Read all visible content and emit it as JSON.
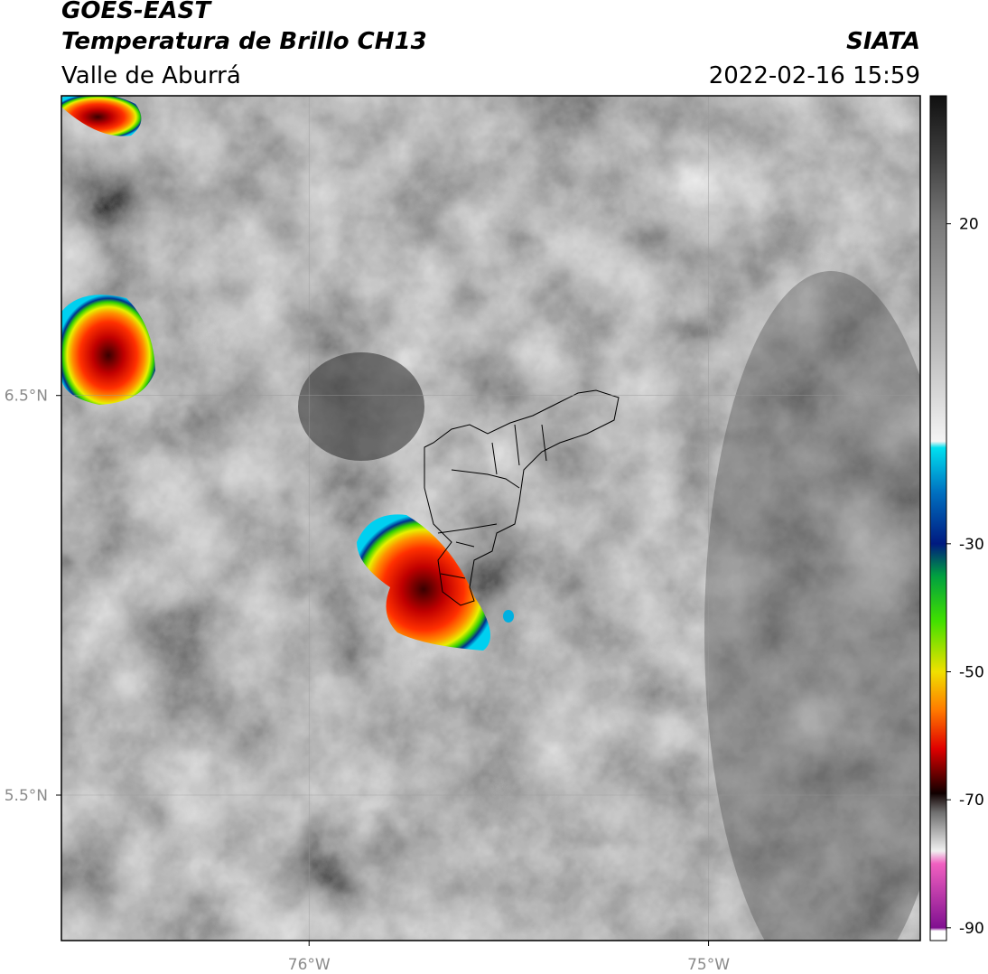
{
  "header": {
    "source": "GOES-EAST",
    "product": "Temperatura de Brillo CH13",
    "agency": "SIATA",
    "region": "Valle de Aburrá",
    "datetime": "2022-02-16 15:59"
  },
  "map": {
    "xlim": [
      -76.62,
      -74.47
    ],
    "ylim": [
      5.136,
      7.25
    ],
    "xticks": [
      {
        "value": -76,
        "label": "76°W"
      },
      {
        "value": -75,
        "label": "75°W"
      }
    ],
    "yticks": [
      {
        "value": 6.5,
        "label": "6.5°N"
      },
      {
        "value": 5.5,
        "label": "5.5°N"
      }
    ]
  },
  "colorbar": {
    "lim": [
      -92,
      40
    ],
    "ticks": [
      20,
      -30,
      -50,
      -70,
      -90
    ],
    "colormap": [
      {
        "value": 40,
        "color": "#101010"
      },
      {
        "value": 30,
        "color": "#404040"
      },
      {
        "value": 20,
        "color": "#7a7a7a"
      },
      {
        "value": 0,
        "color": "#bdbdbd"
      },
      {
        "value": -14,
        "color": "#f4f4f4"
      },
      {
        "value": -15,
        "color": "#00e0f0"
      },
      {
        "value": -22,
        "color": "#0070c0"
      },
      {
        "value": -30,
        "color": "#001a80"
      },
      {
        "value": -35,
        "color": "#00a040"
      },
      {
        "value": -42,
        "color": "#40e000"
      },
      {
        "value": -50,
        "color": "#f0e000"
      },
      {
        "value": -56,
        "color": "#ff7a00"
      },
      {
        "value": -62,
        "color": "#e00000"
      },
      {
        "value": -69,
        "color": "#100000"
      },
      {
        "value": -72,
        "color": "#707070"
      },
      {
        "value": -78,
        "color": "#f0f0f0"
      },
      {
        "value": -80,
        "color": "#f060c0"
      },
      {
        "value": -90,
        "color": "#801090"
      },
      {
        "value": -90.5,
        "color": "#ffffff"
      },
      {
        "value": -92,
        "color": "#ffffff"
      }
    ]
  }
}
